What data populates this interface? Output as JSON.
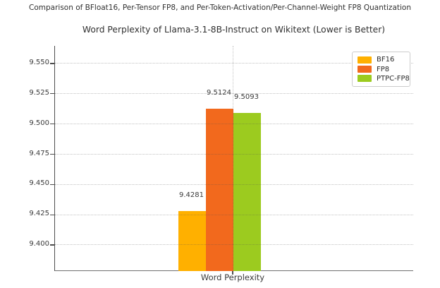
{
  "figure": {
    "suptitle": "Comparison of BFloat16, Per-Tensor FP8, and Per-Token-Activation/Per-Channel-Weight FP8 Quantization"
  },
  "chart_data": {
    "type": "bar",
    "title": "Word Perplexity of Llama-3.1-8B-Instruct on Wikitext (Lower is Better)",
    "xlabel": "Word Perplexity",
    "ylabel": "",
    "categories": [
      "Word Perplexity"
    ],
    "series": [
      {
        "name": "BF16",
        "color": "#FFB000",
        "values": [
          9.4281
        ],
        "value_label": "9.4281"
      },
      {
        "name": "FP8",
        "color": "#F2691D",
        "values": [
          9.5124
        ],
        "value_label": "9.5124"
      },
      {
        "name": "PTPC-FP8",
        "color": "#9CCB1F",
        "values": [
          9.5093
        ],
        "value_label": "9.5093"
      }
    ],
    "ylim": [
      9.3784,
      9.5646
    ],
    "yticks": [
      "9.400",
      "9.425",
      "9.450",
      "9.475",
      "9.500",
      "9.525",
      "9.550"
    ],
    "grid": true,
    "grid_style": "dotted",
    "legend_position": "upper right",
    "lower_is_better": true
  }
}
